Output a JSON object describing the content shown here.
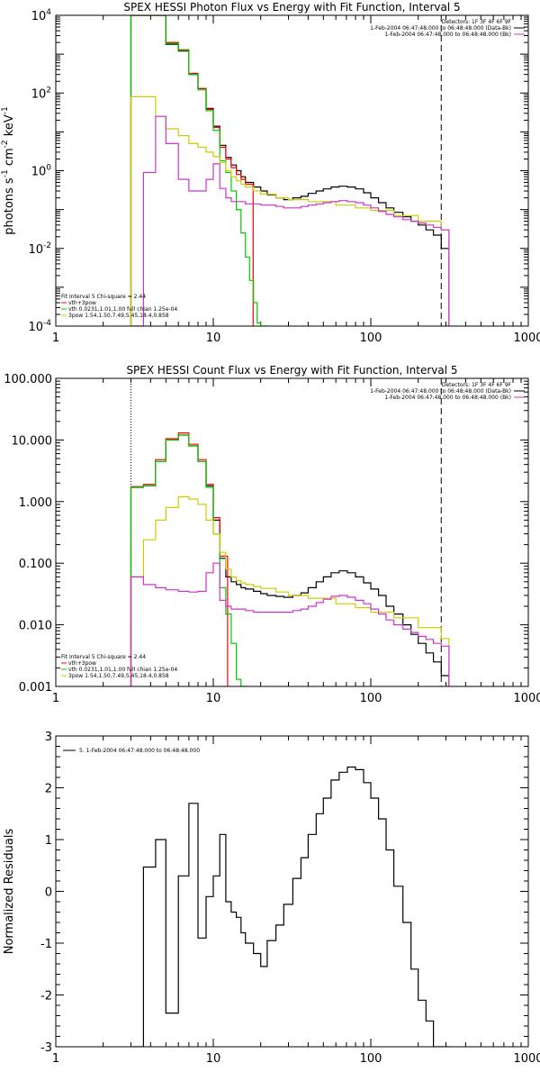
{
  "chart_data": [
    {
      "type": "line",
      "title": "SPEX HESSI Photon Flux vs Energy with Fit Function, Interval 5",
      "ylabel_text": "photons s",
      "ylabel_sup1": "-1",
      "ylabel_mid": " cm",
      "ylabel_sup2": "-2",
      "ylabel_end": " keV",
      "ylabel_sup3": "-1",
      "xscale": "log",
      "yscale": "log",
      "xlim": [
        1,
        1000
      ],
      "ylim": [
        0.0001,
        10000
      ],
      "x_ticks": [
        {
          "value": 1,
          "label": "1"
        },
        {
          "value": 10,
          "label": "10"
        },
        {
          "value": 100,
          "label": "100"
        },
        {
          "value": 1000,
          "label": "1000"
        }
      ],
      "y_ticks": [
        {
          "value": 0.0001,
          "base": "10",
          "exp": "-4"
        },
        {
          "value": 0.01,
          "base": "10",
          "exp": "-2"
        },
        {
          "value": 1,
          "base": "10",
          "exp": "0"
        },
        {
          "value": 100,
          "base": "10",
          "exp": "2"
        },
        {
          "value": 10000,
          "base": "10",
          "exp": "4"
        }
      ],
      "vlines": [
        {
          "x": 3,
          "style": "dotted",
          "color": "#000000"
        },
        {
          "x": 280,
          "style": "dashed",
          "color": "#000000"
        }
      ],
      "legend_top": {
        "position": "top-right",
        "lines": [
          {
            "text": "Detectors: 1F 3F 4F 6F 9F",
            "color": null
          },
          {
            "text": "1-Feb-2004 06:47:48.000 to 06:48:48.000 (Data-Bk)",
            "color": "#000000"
          },
          {
            "text": "1-Feb-2004 06:47:48.000 to 06:48:48.000 (Bk)",
            "color": "#cc33cc"
          }
        ]
      },
      "legend_bottom": {
        "position": "bottom-left",
        "lines": [
          {
            "text": "Fit Interval 5   Chi-square = 2.44",
            "color": null
          },
          {
            "text": "vth+3pow",
            "color": "#ff0000"
          },
          {
            "text": "vth 0.0231,1.01,1.00  full chian 1.25e-04",
            "color": "#00cc00"
          },
          {
            "text": "3pow 1.54,1.50,7.49,5.45,18.4,0.858",
            "color": "#cccc00"
          }
        ]
      },
      "series": [
        {
          "name": "Data-Bk",
          "color": "#000000",
          "x": [
            3,
            3.6,
            4.3,
            5,
            6,
            7,
            8,
            9,
            10,
            11,
            12,
            13,
            14,
            15,
            16,
            18,
            20,
            22,
            25,
            28,
            32,
            36,
            40,
            45,
            50,
            56,
            63,
            71,
            80,
            90,
            100,
            112,
            125,
            140,
            160,
            180,
            200,
            224,
            250,
            280
          ],
          "y": [
            10000,
            10000,
            10000,
            1800,
            1200,
            300,
            130,
            40,
            14,
            4.5,
            2.2,
            1.4,
            1.0,
            0.7,
            0.5,
            0.38,
            0.3,
            0.24,
            0.2,
            0.18,
            0.2,
            0.22,
            0.26,
            0.3,
            0.34,
            0.38,
            0.4,
            0.38,
            0.34,
            0.27,
            0.2,
            0.15,
            0.11,
            0.085,
            0.065,
            0.05,
            0.04,
            0.03,
            0.022,
            0.01
          ]
        },
        {
          "name": "vth+3pow",
          "color": "#ff0000",
          "x": [
            3,
            3.6,
            4.3,
            5,
            6,
            7,
            8,
            9,
            10,
            11,
            12,
            13,
            14,
            15,
            16
          ],
          "y": [
            10000,
            10000,
            10000,
            2000,
            1300,
            320,
            130,
            38,
            13,
            4,
            2.0,
            1.2,
            0.8,
            0.6,
            0.45
          ]
        },
        {
          "name": "vth",
          "color": "#00cc00",
          "x": [
            3,
            3.6,
            4.3,
            5,
            6,
            7,
            8,
            9,
            10,
            11,
            12,
            13,
            14,
            15,
            16,
            17,
            18,
            19,
            20
          ],
          "y": [
            10000,
            10000,
            10000,
            1900,
            1250,
            300,
            120,
            35,
            11,
            1.8,
            0.9,
            0.3,
            0.1,
            0.025,
            0.006,
            0.0015,
            0.0004,
            0.00012,
            5e-05
          ]
        },
        {
          "name": "3pow",
          "color": "#cccc00",
          "x": [
            3,
            3.6,
            4.3,
            5,
            6,
            7,
            8,
            9,
            10,
            11,
            12,
            13,
            14,
            15,
            16,
            18,
            20,
            25,
            30,
            40,
            60,
            80,
            100,
            140,
            200,
            280
          ],
          "y": [
            80,
            80,
            25,
            12,
            8,
            5,
            4,
            3,
            2.3,
            1.6,
            1.0,
            0.7,
            0.55,
            0.45,
            0.38,
            0.3,
            0.25,
            0.2,
            0.18,
            0.16,
            0.13,
            0.11,
            0.095,
            0.07,
            0.05,
            0.03
          ]
        },
        {
          "name": "Bk",
          "color": "#cc33cc",
          "x": [
            3,
            3.6,
            4.3,
            5,
            6,
            7,
            8,
            9,
            10,
            11,
            12,
            13,
            14,
            16,
            18,
            20,
            22,
            25,
            28,
            32,
            36,
            40,
            45,
            50,
            56,
            63,
            71,
            80,
            90,
            100,
            112,
            125,
            140,
            160,
            180,
            200,
            224,
            250,
            280
          ],
          "y": [
            0.0001,
            0.9,
            25,
            5,
            0.6,
            0.3,
            0.3,
            0.6,
            1.5,
            0.35,
            0.2,
            0.16,
            0.16,
            0.14,
            0.14,
            0.13,
            0.13,
            0.12,
            0.11,
            0.11,
            0.12,
            0.13,
            0.14,
            0.15,
            0.16,
            0.17,
            0.16,
            0.15,
            0.13,
            0.11,
            0.09,
            0.075,
            0.065,
            0.055,
            0.05,
            0.045,
            0.04,
            0.035,
            0.03
          ]
        }
      ]
    },
    {
      "type": "line",
      "title": "SPEX HESSI Count Flux vs Energy with Fit Function, Interval 5",
      "xscale": "log",
      "yscale": "log",
      "xlim": [
        1,
        1000
      ],
      "ylim": [
        0.001,
        100
      ],
      "x_ticks": [
        {
          "value": 1,
          "label": "1"
        },
        {
          "value": 10,
          "label": "10"
        },
        {
          "value": 100,
          "label": "100"
        },
        {
          "value": 1000,
          "label": "1000"
        }
      ],
      "y_ticks": [
        {
          "value": 0.001,
          "label": "0.001"
        },
        {
          "value": 0.01,
          "label": "0.010"
        },
        {
          "value": 0.1,
          "label": "0.100"
        },
        {
          "value": 1,
          "label": "1.000"
        },
        {
          "value": 10,
          "label": "10.000"
        },
        {
          "value": 100,
          "label": "100.000"
        }
      ],
      "vlines": [
        {
          "x": 3,
          "style": "dotted",
          "color": "#000000"
        },
        {
          "x": 280,
          "style": "dashed",
          "color": "#000000"
        }
      ],
      "legend_top": {
        "position": "top-right",
        "lines": [
          {
            "text": "Detectors: 1F 3F 4F 6F 9F",
            "color": null
          },
          {
            "text": "1-Feb-2004 06:47:48.000 to 06:48:48.000 (Data-Bk)",
            "color": "#000000"
          },
          {
            "text": "1-Feb-2004 06:47:48.000 to 06:48:48.000 (Bk)",
            "color": "#cc33cc"
          }
        ]
      },
      "legend_bottom": {
        "position": "bottom-left",
        "lines": [
          {
            "text": "Fit Interval 5   Chi-square = 2.44",
            "color": null
          },
          {
            "text": "vth+3pow",
            "color": "#ff0000"
          },
          {
            "text": "vth 0.0231,1.01,1.00  full chian 1.25e-04",
            "color": "#00cc00"
          },
          {
            "text": "3pow 1.54,1.50,7.49,5.45,18.4,0.858",
            "color": "#cccc00"
          }
        ]
      },
      "series": [
        {
          "name": "Data-Bk",
          "color": "#000000",
          "x": [
            3,
            3.6,
            4.3,
            5,
            6,
            7,
            8,
            9,
            10,
            11,
            12,
            13,
            14,
            15,
            16,
            18,
            20,
            22,
            25,
            28,
            32,
            36,
            40,
            45,
            50,
            56,
            63,
            71,
            80,
            90,
            100,
            112,
            125,
            140,
            160,
            180,
            200,
            224,
            250,
            280
          ],
          "y": [
            1.7,
            1.8,
            4.5,
            10,
            12,
            8,
            4.5,
            1.8,
            0.5,
            0.12,
            0.06,
            0.05,
            0.045,
            0.04,
            0.038,
            0.035,
            0.032,
            0.03,
            0.029,
            0.028,
            0.03,
            0.033,
            0.04,
            0.05,
            0.06,
            0.07,
            0.075,
            0.07,
            0.06,
            0.048,
            0.038,
            0.03,
            0.02,
            0.015,
            0.01,
            0.007,
            0.005,
            0.0035,
            0.0025,
            0.0015
          ]
        },
        {
          "name": "vth+3pow",
          "color": "#ff0000",
          "x": [
            3,
            3.6,
            4.3,
            5,
            6,
            7,
            8,
            9,
            10,
            11
          ],
          "y": [
            1.75,
            1.9,
            4.8,
            10.5,
            13,
            8.5,
            4.8,
            1.9,
            0.55,
            0.13
          ]
        },
        {
          "name": "vth",
          "color": "#00cc00",
          "x": [
            3,
            3.6,
            4.3,
            5,
            6,
            7,
            8,
            9,
            10,
            11,
            12,
            13,
            14,
            15
          ],
          "y": [
            1.7,
            1.8,
            4.5,
            10,
            12,
            8,
            4.5,
            1.7,
            0.3,
            0.04,
            0.015,
            0.005,
            0.0013,
            0.0001
          ]
        },
        {
          "name": "3pow",
          "color": "#cccc00",
          "x": [
            3,
            3.6,
            4.3,
            5,
            6,
            7,
            8,
            9,
            10,
            11,
            12,
            13,
            14,
            15,
            16,
            18,
            20,
            25,
            30,
            40,
            60,
            80,
            100,
            140,
            200,
            280
          ],
          "y": [
            0.06,
            0.24,
            0.5,
            0.8,
            1.2,
            1.1,
            0.9,
            0.5,
            0.3,
            0.15,
            0.08,
            0.06,
            0.052,
            0.048,
            0.045,
            0.042,
            0.039,
            0.034,
            0.03,
            0.027,
            0.022,
            0.019,
            0.016,
            0.013,
            0.009,
            0.006
          ]
        },
        {
          "name": "Bk",
          "color": "#cc33cc",
          "x": [
            3,
            3.6,
            4.3,
            5,
            6,
            7,
            8,
            9,
            10,
            11,
            12,
            13,
            14,
            16,
            18,
            20,
            22,
            25,
            28,
            32,
            36,
            40,
            45,
            50,
            56,
            63,
            71,
            80,
            90,
            100,
            112,
            125,
            140,
            160,
            180,
            200,
            224,
            250,
            280
          ],
          "y": [
            0.06,
            0.045,
            0.04,
            0.037,
            0.035,
            0.034,
            0.035,
            0.07,
            0.1,
            0.025,
            0.02,
            0.018,
            0.018,
            0.017,
            0.016,
            0.016,
            0.016,
            0.016,
            0.016,
            0.017,
            0.018,
            0.02,
            0.023,
            0.026,
            0.029,
            0.03,
            0.028,
            0.025,
            0.022,
            0.018,
            0.015,
            0.012,
            0.01,
            0.0085,
            0.0075,
            0.0065,
            0.0058,
            0.005,
            0.0045
          ]
        }
      ]
    },
    {
      "type": "line",
      "title": "",
      "ylabel_text": "Normalized Residuals",
      "xscale": "log",
      "yscale": "linear",
      "xlim": [
        1,
        1000
      ],
      "ylim": [
        -3,
        3
      ],
      "x_ticks": [
        {
          "value": 1,
          "label": "1"
        },
        {
          "value": 10,
          "label": "10"
        },
        {
          "value": 100,
          "label": "100"
        },
        {
          "value": 1000,
          "label": "1000"
        }
      ],
      "y_ticks": [
        {
          "value": -3,
          "label": "-3"
        },
        {
          "value": -2,
          "label": "-2"
        },
        {
          "value": -1,
          "label": "-1"
        },
        {
          "value": 0,
          "label": "0"
        },
        {
          "value": 1,
          "label": "1"
        },
        {
          "value": 2,
          "label": "2"
        },
        {
          "value": 3,
          "label": "3"
        }
      ],
      "vlines": [],
      "legend_top": {
        "position": "top-left",
        "lines": [
          {
            "text": "5.  1-Feb-2004 06:47:48.000 to 06:48:48.000",
            "color": "#000000"
          }
        ]
      },
      "legend_bottom": null,
      "series": [
        {
          "name": "residuals",
          "color": "#000000",
          "x": [
            3,
            3.6,
            4.3,
            5,
            6,
            7,
            8,
            9,
            10,
            11,
            12,
            13,
            14,
            15,
            16,
            18,
            20,
            22,
            25,
            28,
            32,
            36,
            40,
            45,
            50,
            56,
            63,
            71,
            80,
            90,
            100,
            112,
            125,
            140,
            160,
            180,
            200,
            224,
            250,
            280
          ],
          "y": [
            -3,
            0.47,
            1.0,
            -2.35,
            0.3,
            1.7,
            -0.9,
            -0.1,
            0.3,
            1.1,
            -0.2,
            -0.4,
            -0.5,
            -0.8,
            -1.0,
            -1.2,
            -1.45,
            -0.95,
            -0.65,
            -0.25,
            0.25,
            0.65,
            1.1,
            1.5,
            1.8,
            2.15,
            2.3,
            2.4,
            2.35,
            2.1,
            1.8,
            1.4,
            0.8,
            0.1,
            -0.6,
            -1.5,
            -2.1,
            -2.5,
            -3,
            -3
          ]
        }
      ]
    }
  ]
}
